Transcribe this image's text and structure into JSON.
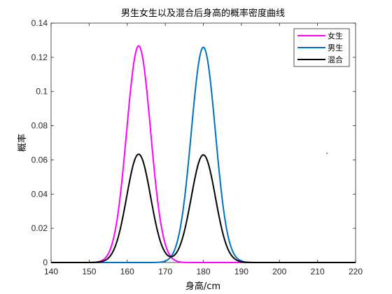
{
  "chart_data": {
    "type": "line",
    "title": "男生女生以及混合后身高的概率密度曲线",
    "xlabel": "身高/cm",
    "ylabel": "概率",
    "xlim": [
      140,
      220
    ],
    "ylim": [
      0,
      0.14
    ],
    "xticks": [
      140,
      150,
      160,
      170,
      180,
      190,
      200,
      210,
      220
    ],
    "yticks": [
      0,
      0.02,
      0.04,
      0.06,
      0.08,
      0.1,
      0.12,
      0.14
    ],
    "ytick_labels": [
      "0",
      "0.02",
      "0.04",
      "0.06",
      "0.08",
      "0.1",
      "0.12",
      "0.14"
    ],
    "grid": false,
    "legend_position": "top-right",
    "series": [
      {
        "name": "女生",
        "color": "#ff00ff",
        "distribution": "normal",
        "mean": 163,
        "std": 3.15,
        "weight": 1
      },
      {
        "name": "男生",
        "color": "#0072bd",
        "distribution": "normal",
        "mean": 180,
        "std": 3.17,
        "weight": 1
      },
      {
        "name": "混合",
        "color": "#000000",
        "distribution": "mixture",
        "components": [
          {
            "mean": 163,
            "std": 3.15,
            "weight": 0.5
          },
          {
            "mean": 180,
            "std": 3.17,
            "weight": 0.5
          }
        ]
      }
    ]
  }
}
